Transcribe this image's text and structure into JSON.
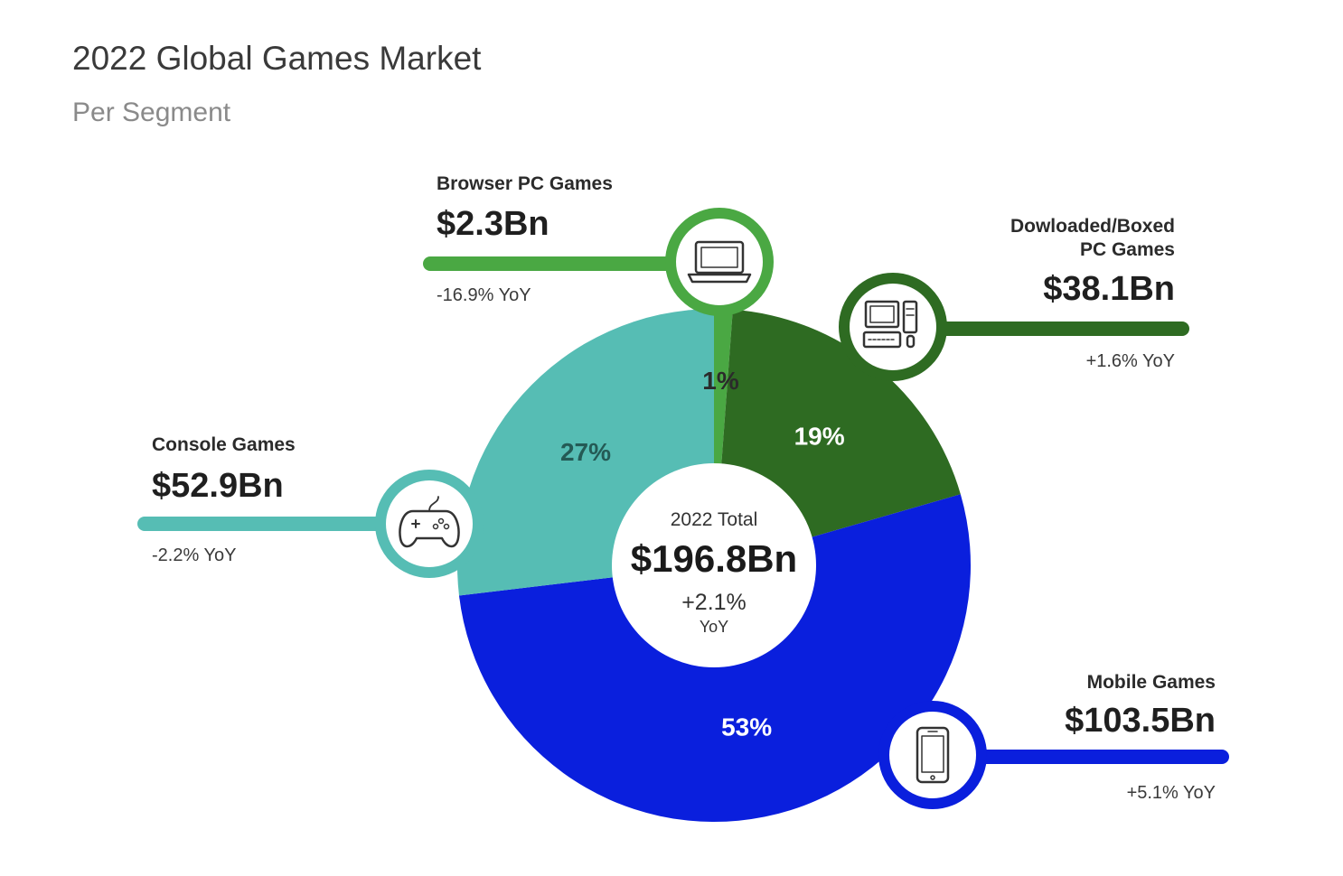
{
  "chart_data": {
    "type": "pie",
    "title": "2022 Global Games Market",
    "subtitle": "Per Segment",
    "segments": [
      {
        "name": "Browser PC Games",
        "value_label": "$2.3Bn",
        "value": 2.3,
        "percent_label": "1%",
        "percent": 1,
        "yoy_label": "-16.9% YoY",
        "yoy": -16.9,
        "color": "#4aa843",
        "icon": "laptop-icon",
        "name_lines": [
          "Browser PC Games"
        ]
      },
      {
        "name": "Dowloaded/Boxed PC Games",
        "value_label": "$38.1Bn",
        "value": 38.1,
        "percent_label": "19%",
        "percent": 19,
        "yoy_label": "+1.6% YoY",
        "yoy": 1.6,
        "color": "#2e6b22",
        "icon": "desktop-pc-icon",
        "name_lines": [
          "Dowloaded/Boxed",
          "PC Games"
        ]
      },
      {
        "name": "Mobile Games",
        "value_label": "$103.5Bn",
        "value": 103.5,
        "percent_label": "53%",
        "percent": 53,
        "yoy_label": "+5.1% YoY",
        "yoy": 5.1,
        "color": "#0a1fdd",
        "icon": "mobile-phone-icon",
        "name_lines": [
          "Mobile Games"
        ]
      },
      {
        "name": "Console Games",
        "value_label": "$52.9Bn",
        "value": 52.9,
        "percent_label": "27%",
        "percent": 27,
        "yoy_label": "-2.2% YoY",
        "yoy": -2.2,
        "color": "#56bdb4",
        "icon": "gamepad-icon",
        "name_lines": [
          "Console Games"
        ]
      }
    ],
    "total": {
      "label": "2022 Total",
      "value_label": "$196.8Bn",
      "value": 196.8,
      "yoy_value": "+2.1%",
      "yoy_unit": "YoY"
    }
  }
}
